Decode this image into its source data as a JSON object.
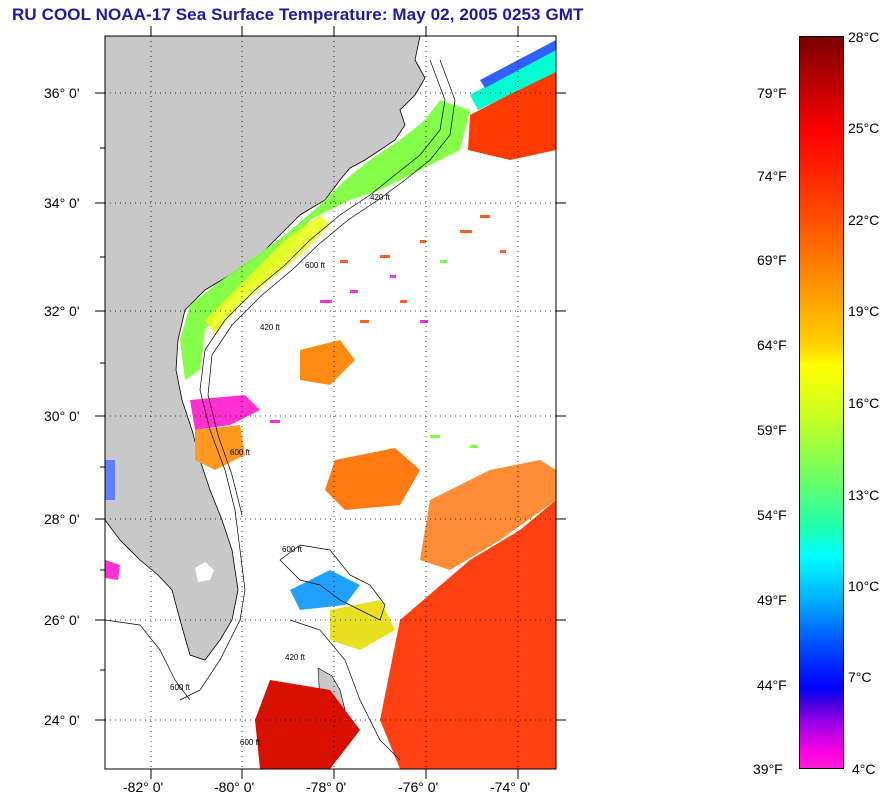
{
  "title": "RU COOL  NOAA-17  Sea Surface Temperature:  May 02, 2005 0253 GMT",
  "map": {
    "lat_labels": [
      "36° 0'",
      "34° 0'",
      "32° 0'",
      "30° 0'",
      "28° 0'",
      "26° 0'",
      "24° 0'"
    ],
    "lon_labels": [
      "-82° 0'",
      "-80° 0'",
      "-78° 0'",
      "-76° 0'",
      "-74° 0'"
    ],
    "isobath_labels": [
      "420 ft",
      "600 ft",
      "420 ft",
      "600 ft",
      "600 ft",
      "420 ft",
      "600 ft",
      "600 ft"
    ],
    "land_color": "#c8c8c8",
    "ocean_no_data_color": "#ffffff"
  },
  "colorbar": {
    "fahrenheit_labels": [
      "79°F",
      "74°F",
      "69°F",
      "64°F",
      "59°F",
      "54°F",
      "49°F",
      "44°F",
      "39°F"
    ],
    "celsius_labels": [
      "28°C",
      "25°C",
      "22°C",
      "19°C",
      "16°C",
      "13°C",
      "10°C",
      "7°C",
      "4°C"
    ]
  }
}
